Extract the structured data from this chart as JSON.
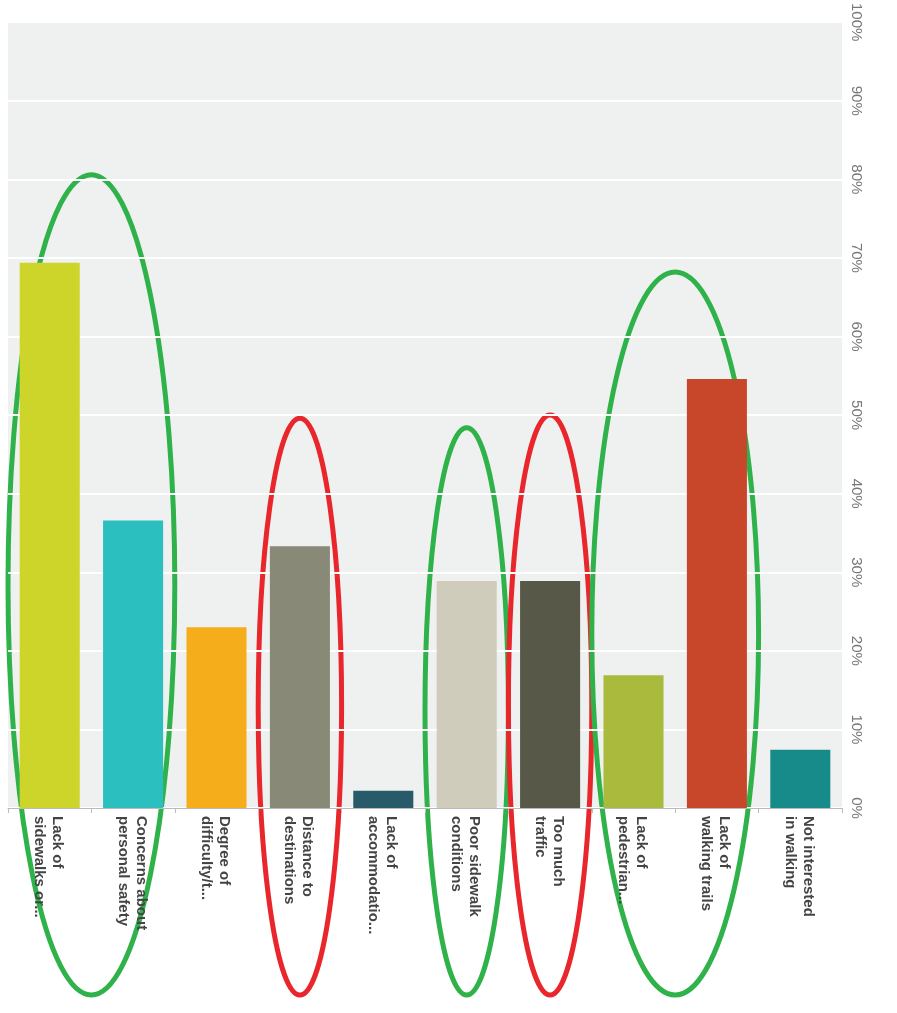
{
  "chart_data": {
    "type": "bar",
    "categories": [
      "Lack of\nsidewalks or...",
      "Concerns about\npersonal safety",
      "Degree of\ndifficulty/t...",
      "Distance to\ndestinations",
      "Lack of\naccommodatio...",
      "Poor sidewalk\nconditions",
      "Too much\ntraffic",
      "Lack of\npedestrian...",
      "Lack of\nwalking trails",
      "Not interested\nin walking"
    ],
    "values": [
      69.4,
      36.6,
      23,
      33.3,
      2.2,
      28.9,
      28.9,
      16.9,
      54.6,
      7.4
    ],
    "colors": [
      "#cdd52a",
      "#2bbfbf",
      "#f5ad1c",
      "#888a77",
      "#285b6a",
      "#cfccbb",
      "#575848",
      "#a9ba3c",
      "#c8472a",
      "#178a8a"
    ],
    "ylim": [
      0,
      100
    ],
    "yticks": [
      {
        "value": 0,
        "label": "0%"
      },
      {
        "value": 10,
        "label": "10%"
      },
      {
        "value": 20,
        "label": "20%"
      },
      {
        "value": 30,
        "label": "30%"
      },
      {
        "value": 40,
        "label": "40%"
      },
      {
        "value": 50,
        "label": "50%"
      },
      {
        "value": 60,
        "label": "60%"
      },
      {
        "value": 70,
        "label": "70%"
      },
      {
        "value": 80,
        "label": "80%"
      },
      {
        "value": 90,
        "label": "90%"
      },
      {
        "value": 100,
        "label": "100%"
      }
    ],
    "grid": "y"
  }
}
